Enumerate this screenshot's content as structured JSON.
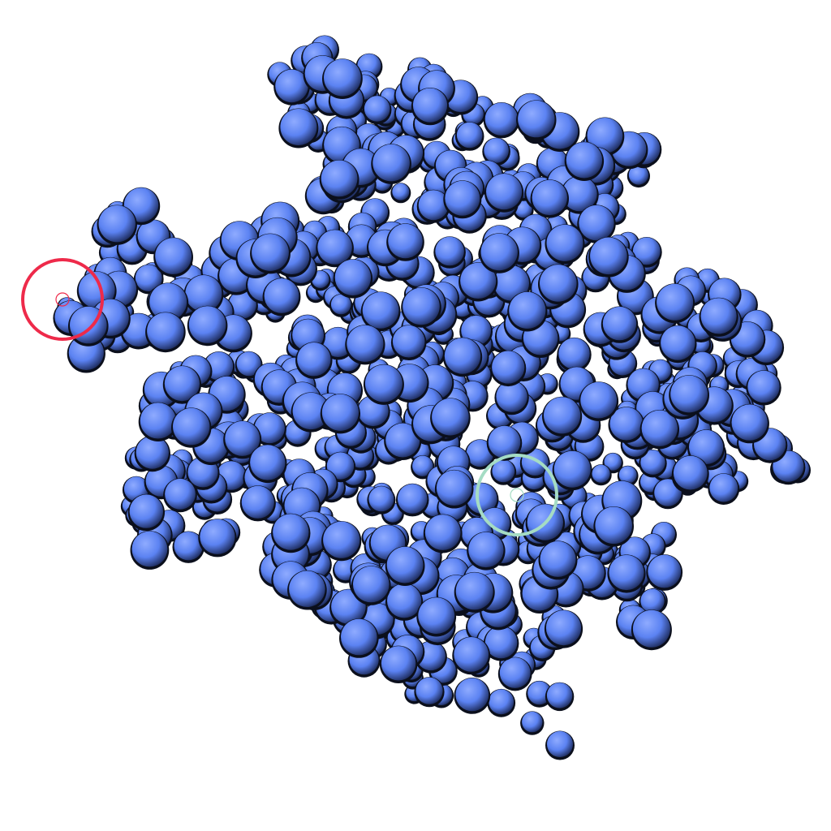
{
  "scene": {
    "background": "#ffffff",
    "atom_color": "#5b82f2",
    "atom_highlight": "#8fabff",
    "atom_shadow": "#1c2a5a",
    "outline_color": "#0b0f1c"
  },
  "markers": [
    {
      "name": "red-target-ring",
      "color": "#ee2a4a"
    },
    {
      "name": "green-target-ring",
      "color": "#a5dcc4"
    }
  ]
}
